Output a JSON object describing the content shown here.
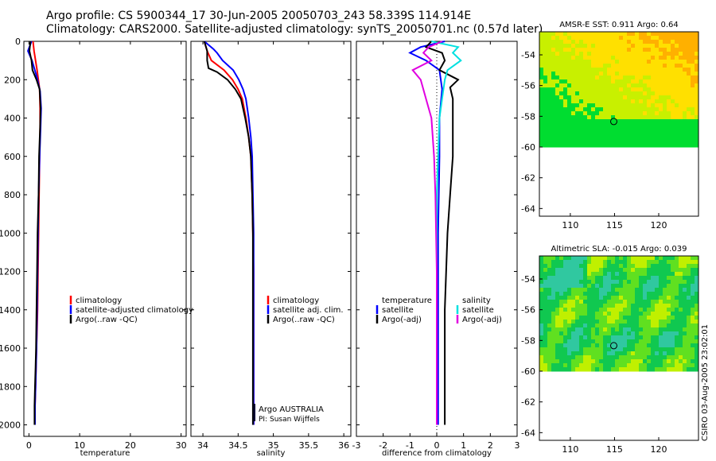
{
  "title": {
    "line1": "Argo profile: CS 5900344_17 30-Jun-2005 20050703_243 58.339S 114.914E",
    "line2": "Climatology: CARS2000. Satellite-adjusted climatology: synTS_20050701.nc (0.57d later)"
  },
  "chart_data": [
    {
      "type": "line",
      "xlabel": "temperature",
      "xlim": [
        -1,
        31
      ],
      "ylim": [
        2060,
        0
      ],
      "xticks": [
        0,
        10,
        20,
        30
      ],
      "yticks": [
        0,
        200,
        400,
        600,
        800,
        1000,
        1200,
        1400,
        1600,
        1800,
        2000
      ],
      "legend": {
        "placement": "bottom-right",
        "labels": [
          "climatology",
          "satellite-adjusted climatology",
          "Argo(..raw -QC)"
        ]
      },
      "series": [
        {
          "name": "climatology",
          "color": "#ff0000",
          "x": [
            0.8,
            1.0,
            1.6,
            2.1,
            2.2,
            2.2,
            2.1,
            2.0,
            1.9,
            1.8,
            1.7,
            1.6,
            1.5,
            1.4,
            1.3,
            1.2,
            1.2
          ],
          "y": [
            0,
            50,
            150,
            250,
            350,
            450,
            600,
            800,
            1000,
            1200,
            1400,
            1500,
            1600,
            1700,
            1800,
            1900,
            2000
          ]
        },
        {
          "name": "satellite-adjusted climatology",
          "color": "#0000ff",
          "x": [
            0.5,
            -0.2,
            0.6,
            1.5,
            2.2,
            2.4,
            2.3,
            2.1,
            1.9,
            1.8,
            1.7,
            1.6,
            1.5,
            1.4,
            1.3,
            1.2,
            1.2
          ],
          "y": [
            0,
            50,
            100,
            180,
            260,
            350,
            450,
            600,
            800,
            1000,
            1200,
            1400,
            1600,
            1700,
            1800,
            1900,
            2000
          ]
        },
        {
          "name": "Argo(..raw -QC)",
          "color": "#000000",
          "x": [
            0.3,
            0.1,
            0.5,
            0.7,
            1.5,
            2.1,
            2.3,
            2.2,
            2.0,
            1.9,
            1.7,
            1.6,
            1.5,
            1.4,
            1.3,
            1.2,
            1.1,
            1.1
          ],
          "y": [
            0,
            50,
            100,
            150,
            200,
            250,
            350,
            450,
            600,
            800,
            1000,
            1200,
            1400,
            1600,
            1700,
            1800,
            1900,
            2000
          ]
        }
      ]
    },
    {
      "type": "line",
      "xlabel": "salinity",
      "xlim": [
        33.83,
        36.1
      ],
      "ylim": [
        2060,
        0
      ],
      "xticks": [
        34,
        34.5,
        35,
        35.5,
        36
      ],
      "legend": {
        "placement": "bottom-left",
        "labels": [
          "climatology",
          "satellite adj. clim.",
          "Argo(..raw -QC)"
        ]
      },
      "annotations": [
        "Argo AUSTRALIA",
        "PI: Susan Wijffels"
      ],
      "series": [
        {
          "name": "climatology",
          "color": "#ff0000",
          "x": [
            34.02,
            34.06,
            34.12,
            34.3,
            34.42,
            34.5,
            34.56,
            34.61,
            34.65,
            34.68,
            34.7,
            34.71,
            34.72,
            34.72,
            34.72,
            34.72,
            34.72,
            34.72
          ],
          "y": [
            0,
            50,
            100,
            150,
            200,
            250,
            300,
            400,
            500,
            600,
            800,
            1000,
            1200,
            1400,
            1600,
            1800,
            1900,
            2000
          ]
        },
        {
          "name": "satellite adj. clim.",
          "color": "#0000ff",
          "x": [
            34.02,
            34.15,
            34.2,
            34.28,
            34.43,
            34.51,
            34.57,
            34.61,
            34.65,
            34.68,
            34.7,
            34.71,
            34.72,
            34.72,
            34.72,
            34.72,
            34.72,
            34.72
          ],
          "y": [
            0,
            40,
            60,
            100,
            150,
            200,
            250,
            300,
            400,
            500,
            600,
            800,
            1000,
            1200,
            1400,
            1600,
            1800,
            2000
          ]
        },
        {
          "name": "Argo(..raw -QC)",
          "color": "#000000",
          "x": [
            34.02,
            34.06,
            34.06,
            34.08,
            34.2,
            34.35,
            34.46,
            34.54,
            34.6,
            34.65,
            34.68,
            34.7,
            34.71,
            34.71,
            34.71,
            34.71,
            34.71,
            34.71
          ],
          "y": [
            0,
            50,
            100,
            140,
            160,
            200,
            250,
            300,
            400,
            500,
            600,
            800,
            1000,
            1200,
            1400,
            1600,
            1800,
            2000
          ]
        }
      ]
    },
    {
      "type": "line",
      "xlabel": "difference from climatology",
      "xlim": [
        -3,
        3
      ],
      "ylim": [
        2060,
        0
      ],
      "xticks": [
        -3,
        -2,
        -1,
        0,
        1,
        2,
        3
      ],
      "legend": {
        "placement": "bottom",
        "labels": [
          "temperature",
          "satellite",
          "Argo(-adj)",
          "salinity",
          "satellite",
          "Argo(-adj)"
        ]
      },
      "series": [
        {
          "name": "temperature satellite",
          "color": "#0000ff",
          "x": [
            0.3,
            -0.6,
            -1.0,
            -0.4,
            0.1,
            0.2,
            0.1,
            0.1,
            0.05,
            0.05,
            0.05,
            0.05
          ],
          "y": [
            0,
            30,
            60,
            100,
            150,
            250,
            400,
            600,
            1000,
            1400,
            1800,
            2000
          ]
        },
        {
          "name": "temperature Argo(-adj)",
          "color": "#000000",
          "x": [
            -0.2,
            -0.4,
            0.2,
            0.3,
            0.1,
            0.8,
            0.5,
            0.6,
            0.6,
            0.6,
            0.5,
            0.4,
            0.3,
            0.3,
            0.3
          ],
          "y": [
            0,
            30,
            60,
            100,
            150,
            200,
            240,
            300,
            400,
            600,
            800,
            1000,
            1400,
            1800,
            2000
          ]
        },
        {
          "name": "salinity satellite",
          "color": "#00e0e0",
          "x": [
            -0.2,
            0.8,
            0.6,
            0.9,
            0.4,
            0.3,
            0.2,
            0.1,
            0.05,
            0.0,
            0.0,
            0.0,
            0.0
          ],
          "y": [
            0,
            30,
            60,
            100,
            150,
            200,
            300,
            400,
            600,
            800,
            1200,
            1600,
            2000
          ]
        },
        {
          "name": "salinity Argo(-adj)",
          "color": "#e000e0",
          "x": [
            0.2,
            -0.3,
            -0.5,
            -0.2,
            -0.9,
            -0.6,
            -0.4,
            -0.2,
            -0.1,
            -0.05,
            0.0,
            0.0,
            0.0
          ],
          "y": [
            0,
            30,
            60,
            100,
            150,
            200,
            300,
            400,
            600,
            800,
            1200,
            1600,
            2000
          ]
        }
      ]
    },
    {
      "type": "heatmap",
      "title": "AMSR-E SST: 0.911 Argo: 0.64",
      "xlim": [
        106.5,
        124.5
      ],
      "ylim": [
        -64.5,
        -52.5
      ],
      "xticks": [
        110,
        115,
        120
      ],
      "yticks": [
        -54,
        -56,
        -58,
        -60,
        -62,
        -64
      ],
      "data_extent_lat": [
        -60,
        -52.5
      ],
      "marker": {
        "lon": 114.914,
        "lat": -58.339
      },
      "colors": [
        "#00dd30",
        "#c8f000",
        "#ffe000",
        "#ffb000",
        "#e08010"
      ]
    },
    {
      "type": "heatmap",
      "title": "Altimetric SLA: -0.015 Argo: 0.039",
      "xlim": [
        106.5,
        124.5
      ],
      "ylim": [
        -64.5,
        -52.5
      ],
      "xticks": [
        110,
        115,
        120
      ],
      "yticks": [
        -54,
        -56,
        -58,
        -60,
        -62,
        -64
      ],
      "data_extent_lat": [
        -60,
        -52.5
      ],
      "marker": {
        "lon": 114.914,
        "lat": -58.339
      },
      "colors": [
        "#30c8a0",
        "#10c850",
        "#60e020",
        "#c0f000"
      ]
    }
  ],
  "footer": {
    "credit": "CSIRO 03-Aug-2005 23:02:01"
  }
}
